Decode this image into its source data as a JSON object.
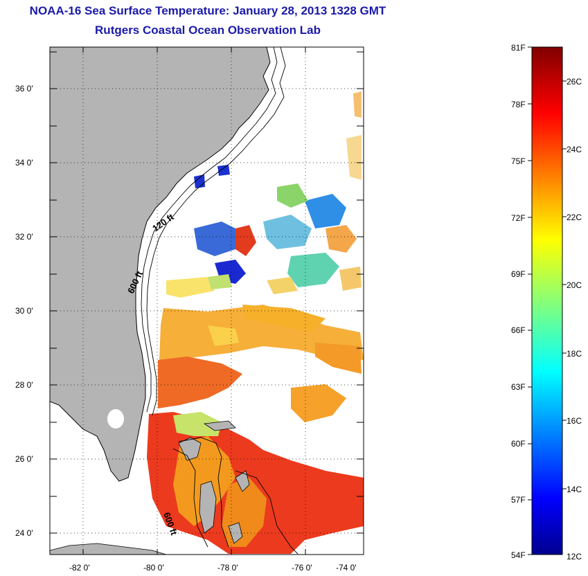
{
  "title": "NOAA-16 Sea Surface Temperature:  January 28, 2013 1328 GMT",
  "subtitle": "Rutgers Coastal Ocean Observation Lab",
  "map": {
    "lon_ticks": [
      "-82 0'",
      "-80 0'",
      "-78 0'",
      "-76 0'",
      "-74 0'"
    ],
    "lat_ticks": [
      "36 0'",
      "34 0'",
      "32 0'",
      "30 0'",
      "28 0'",
      "26 0'",
      "24 0'"
    ],
    "contours": [
      "120 ft",
      "600 ft",
      "600 ft"
    ],
    "colors": {
      "land": "#b4b4b4",
      "water": "#ffffff"
    }
  },
  "colorbar": {
    "fahrenheit": [
      "81F",
      "78F",
      "75F",
      "72F",
      "69F",
      "66F",
      "63F",
      "60F",
      "57F",
      "54F"
    ],
    "celsius": [
      "26C",
      "24C",
      "22C",
      "20C",
      "18C",
      "16C",
      "14C",
      "12C"
    ],
    "colormap": "jet"
  }
}
